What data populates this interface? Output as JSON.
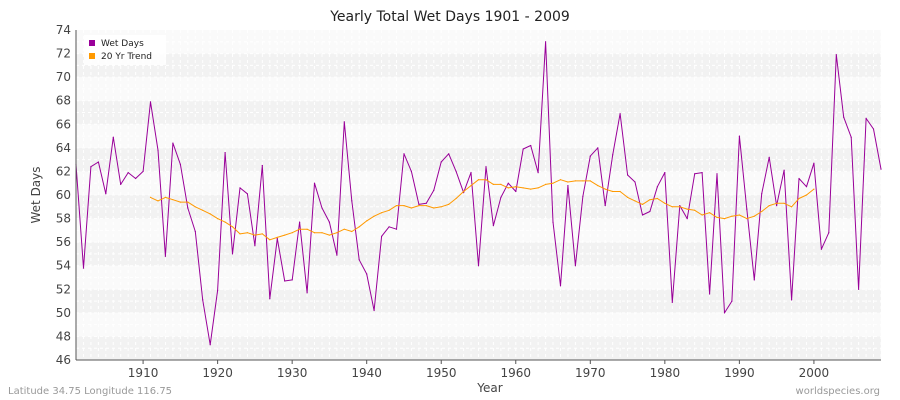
{
  "chart_data": {
    "type": "line",
    "title": "Yearly Total Wet Days 1901 - 2009",
    "xlabel": "Year",
    "ylabel": "Wet Days",
    "xlim": [
      1901,
      2009
    ],
    "ylim": [
      46,
      74
    ],
    "xticks": [
      1910,
      1920,
      1930,
      1940,
      1950,
      1960,
      1970,
      1980,
      1990,
      2000
    ],
    "yticks": [
      46,
      48,
      50,
      52,
      54,
      56,
      58,
      60,
      62,
      64,
      66,
      68,
      70,
      72,
      74
    ],
    "grid": true,
    "legend": "top-left",
    "series": [
      {
        "name": "Wet Days",
        "color": "#990099",
        "x": [
          1901,
          1902,
          1903,
          1904,
          1905,
          1906,
          1907,
          1908,
          1909,
          1910,
          1911,
          1912,
          1913,
          1914,
          1915,
          1916,
          1917,
          1918,
          1919,
          1920,
          1921,
          1922,
          1923,
          1924,
          1925,
          1926,
          1927,
          1928,
          1929,
          1930,
          1931,
          1932,
          1933,
          1934,
          1935,
          1936,
          1937,
          1938,
          1939,
          1940,
          1941,
          1942,
          1943,
          1944,
          1945,
          1946,
          1947,
          1948,
          1949,
          1950,
          1951,
          1952,
          1953,
          1954,
          1955,
          1956,
          1957,
          1958,
          1959,
          1960,
          1961,
          1962,
          1963,
          1964,
          1965,
          1966,
          1967,
          1968,
          1969,
          1970,
          1971,
          1972,
          1973,
          1974,
          1975,
          1976,
          1977,
          1978,
          1979,
          1980,
          1981,
          1982,
          1983,
          1984,
          1985,
          1986,
          1987,
          1988,
          1989,
          1990,
          1991,
          1992,
          1993,
          1994,
          1995,
          1996,
          1997,
          1998,
          1999,
          2000,
          2001,
          2002,
          2003,
          2004,
          2005,
          2006,
          2007,
          2008,
          2009
        ],
        "values": [
          62.6,
          53.8,
          62.4,
          62.8,
          60.1,
          64.9,
          60.9,
          61.9,
          61.4,
          62.0,
          67.9,
          63.8,
          54.8,
          64.4,
          62.6,
          58.9,
          56.9,
          51.1,
          47.3,
          51.9,
          63.6,
          55.0,
          60.6,
          60.1,
          55.7,
          62.5,
          51.2,
          56.3,
          52.7,
          52.8,
          57.7,
          51.7,
          61.0,
          58.9,
          57.7,
          54.9,
          66.2,
          59.5,
          54.5,
          53.3,
          50.2,
          56.5,
          57.3,
          57.1,
          63.5,
          62.0,
          59.2,
          59.3,
          60.4,
          62.8,
          63.5,
          62.0,
          60.2,
          61.9,
          54.0,
          62.4,
          57.4,
          59.8,
          61.0,
          60.3,
          63.9,
          64.2,
          61.9,
          73.0,
          57.7,
          52.3,
          60.8,
          54.0,
          59.9,
          63.3,
          64.0,
          59.1,
          63.4,
          66.9,
          61.7,
          61.1,
          58.3,
          58.6,
          60.7,
          61.9,
          50.9,
          59.1,
          58.0,
          61.8,
          61.9,
          51.6,
          61.8,
          50.0,
          51.0,
          65.0,
          58.8,
          52.8,
          60.1,
          63.2,
          59.1,
          62.1,
          51.1,
          61.4,
          60.7,
          62.7,
          55.4,
          56.8,
          71.9,
          66.6,
          64.9,
          52.0,
          66.5,
          65.6,
          62.2
        ]
      },
      {
        "name": "20 Yr Trend",
        "color": "#ff9900",
        "x": [
          1911,
          1912,
          1913,
          1914,
          1915,
          1916,
          1917,
          1918,
          1919,
          1920,
          1921,
          1922,
          1923,
          1924,
          1925,
          1926,
          1927,
          1928,
          1929,
          1930,
          1931,
          1932,
          1933,
          1934,
          1935,
          1936,
          1937,
          1938,
          1939,
          1940,
          1941,
          1942,
          1943,
          1944,
          1945,
          1946,
          1947,
          1948,
          1949,
          1950,
          1951,
          1952,
          1953,
          1954,
          1955,
          1956,
          1957,
          1958,
          1959,
          1960,
          1961,
          1962,
          1963,
          1964,
          1965,
          1966,
          1967,
          1968,
          1969,
          1970,
          1971,
          1972,
          1973,
          1974,
          1975,
          1976,
          1977,
          1978,
          1979,
          1980,
          1981,
          1982,
          1983,
          1984,
          1985,
          1986,
          1987,
          1988,
          1989,
          1990,
          1991,
          1992,
          1993,
          1994,
          1995,
          1996,
          1997,
          1998,
          1999,
          2000
        ],
        "values": [
          59.8,
          59.5,
          59.8,
          59.6,
          59.4,
          59.4,
          59.0,
          58.7,
          58.4,
          58.0,
          57.7,
          57.3,
          56.7,
          56.8,
          56.6,
          56.7,
          56.2,
          56.4,
          56.6,
          56.8,
          57.1,
          57.1,
          56.8,
          56.8,
          56.6,
          56.8,
          57.1,
          56.9,
          57.3,
          57.8,
          58.2,
          58.5,
          58.7,
          59.1,
          59.1,
          58.9,
          59.1,
          59.1,
          58.9,
          59.0,
          59.2,
          59.7,
          60.3,
          60.8,
          61.3,
          61.3,
          60.9,
          60.9,
          60.6,
          60.7,
          60.6,
          60.5,
          60.6,
          60.9,
          61.0,
          61.3,
          61.1,
          61.2,
          61.2,
          61.2,
          60.8,
          60.5,
          60.3,
          60.3,
          59.8,
          59.5,
          59.2,
          59.6,
          59.7,
          59.3,
          59.0,
          59.0,
          58.8,
          58.7,
          58.3,
          58.5,
          58.1,
          58.0,
          58.2,
          58.3,
          58.0,
          58.2,
          58.6,
          59.1,
          59.3,
          59.3,
          59.0,
          59.7,
          60.0,
          60.5
        ]
      }
    ]
  },
  "footer": {
    "left": "Latitude 34.75 Longitude 116.75",
    "right": "worldspecies.org"
  }
}
